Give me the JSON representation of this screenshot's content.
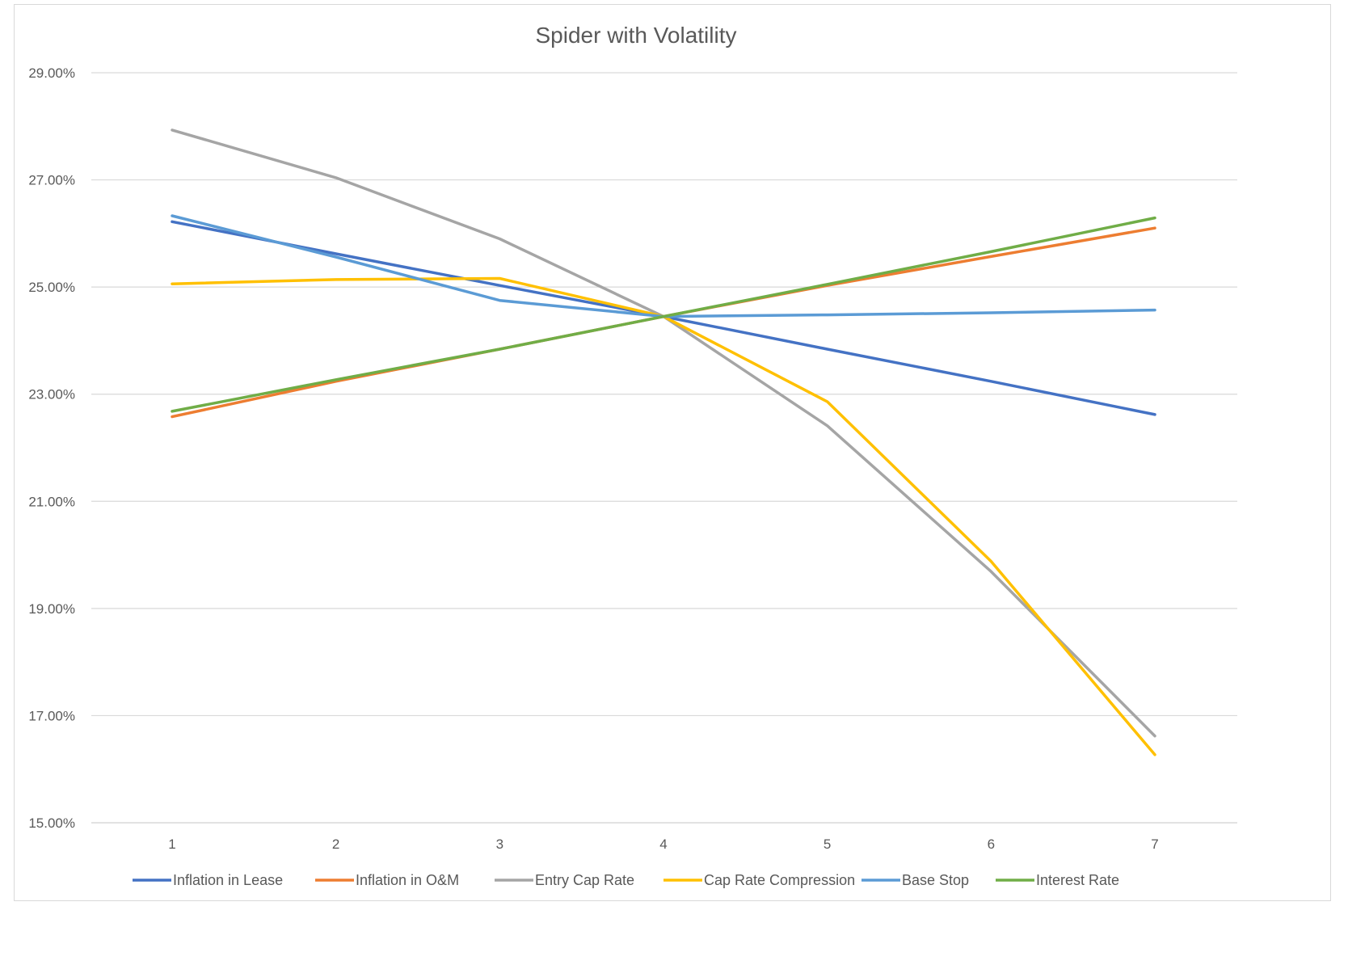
{
  "chart_data": {
    "type": "line",
    "title": "Spider with Volatility",
    "xlabel": "",
    "ylabel": "",
    "categories": [
      "1",
      "2",
      "3",
      "4",
      "5",
      "6",
      "7"
    ],
    "yticks": [
      "15.00%",
      "17.00%",
      "19.00%",
      "21.00%",
      "23.00%",
      "25.00%",
      "27.00%",
      "29.00%"
    ],
    "ylim": [
      15,
      29
    ],
    "grid": true,
    "legend_position": "bottom",
    "series": [
      {
        "name": "Inflation in Lease",
        "color": "#4472c4",
        "values": [
          26.22,
          25.62,
          25.03,
          24.45,
          23.84,
          23.24,
          22.62
        ]
      },
      {
        "name": "Inflation in O&M",
        "color": "#ed7d31",
        "values": [
          22.58,
          23.24,
          23.84,
          24.45,
          25.03,
          25.57,
          26.1
        ]
      },
      {
        "name": "Entry Cap Rate",
        "color": "#a5a5a5",
        "values": [
          27.93,
          27.04,
          25.9,
          24.45,
          22.41,
          19.69,
          16.62
        ]
      },
      {
        "name": "Cap Rate Compression",
        "color": "#ffc000",
        "values": [
          25.06,
          25.14,
          25.16,
          24.45,
          22.86,
          19.88,
          16.27
        ]
      },
      {
        "name": "Base Stop",
        "color": "#5b9bd5",
        "values": [
          26.33,
          25.56,
          24.75,
          24.45,
          24.48,
          24.52,
          24.57
        ]
      },
      {
        "name": "Interest Rate",
        "color": "#70ad47",
        "values": [
          22.68,
          23.27,
          23.84,
          24.45,
          25.05,
          25.66,
          26.29
        ]
      }
    ]
  }
}
